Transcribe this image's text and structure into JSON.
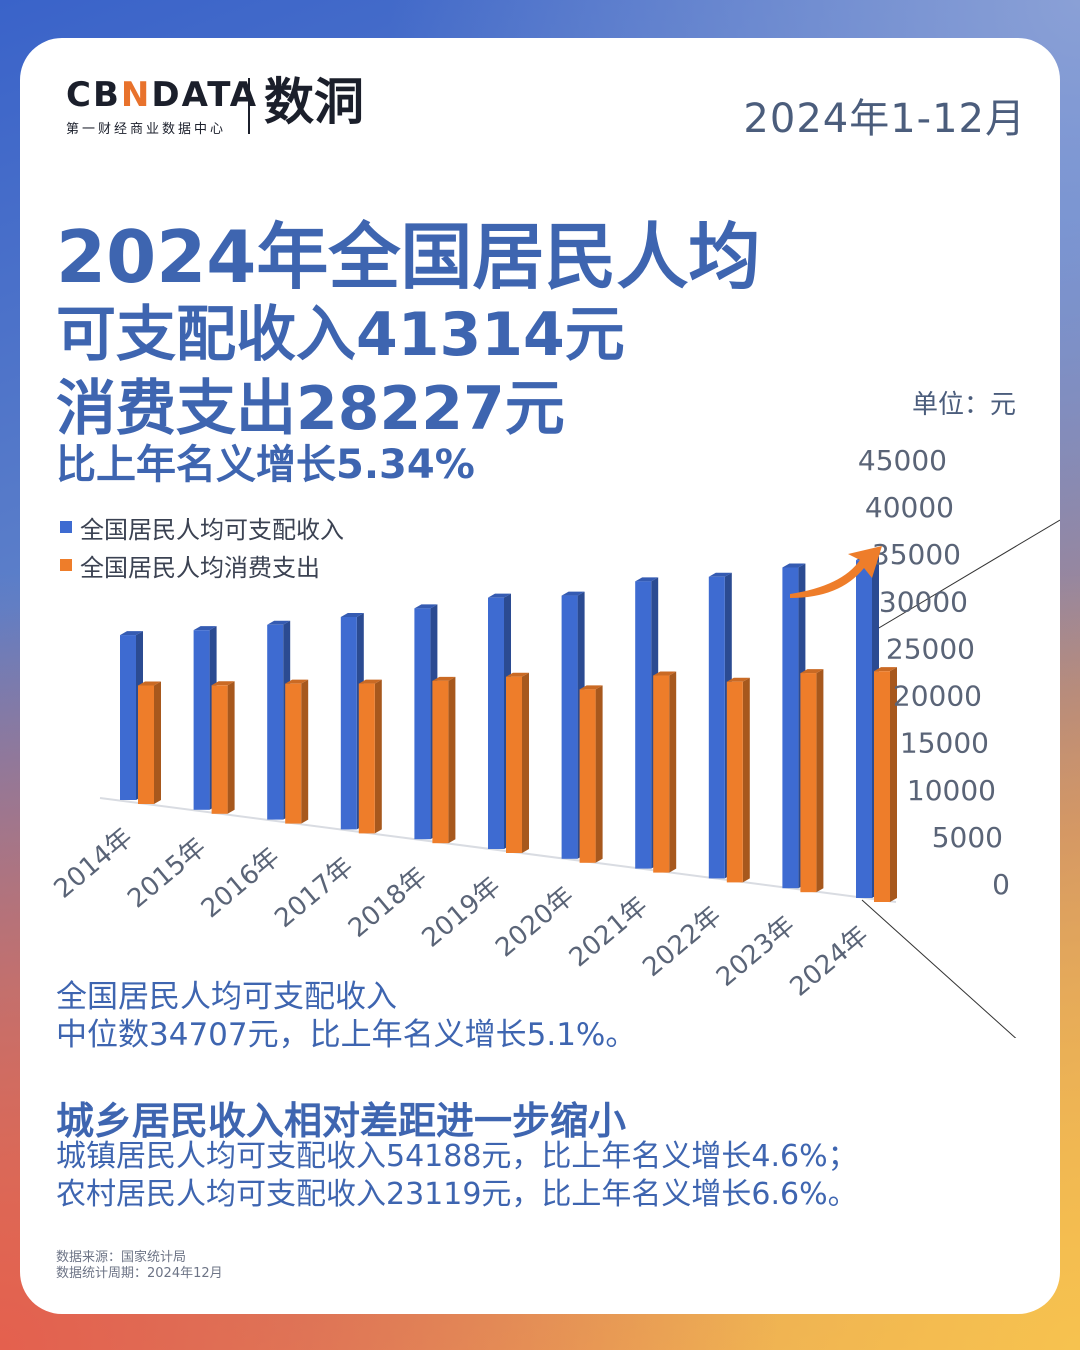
{
  "header": {
    "logo_text_a": "CB",
    "logo_text_x": "N",
    "logo_text_b": "DATA",
    "logo_subtitle": "第一财经商业数据中心",
    "logo_cn": "数洞",
    "period": "2024年1-12月"
  },
  "headline": {
    "line1": "2024年全国居民人均",
    "line2": "可支配收入41314元",
    "line3": "消费支出28227元",
    "line4": "比上年名义增长5.34%"
  },
  "chart_data": {
    "type": "bar",
    "unit_label": "单位：元",
    "categories": [
      "2014年",
      "2015年",
      "2016年",
      "2017年",
      "2018年",
      "2019年",
      "2020年",
      "2021年",
      "2022年",
      "2023年",
      "2024年"
    ],
    "series": [
      {
        "name": "全国居民人均可支配收入",
        "color": "#3e6bd1",
        "values": [
          20167,
          21966,
          23821,
          25974,
          28228,
          30733,
          32189,
          35128,
          36883,
          39218,
          41314
        ]
      },
      {
        "name": "全国居民人均消费支出",
        "color": "#ee7d2a",
        "values": [
          14491,
          15712,
          17111,
          18322,
          19853,
          21559,
          21210,
          24100,
          24538,
          26796,
          28227
        ]
      }
    ],
    "y_ticks": [
      0,
      5000,
      10000,
      15000,
      20000,
      25000,
      30000,
      35000,
      40000,
      45000
    ],
    "ylim": [
      0,
      45000
    ]
  },
  "notes": {
    "median_line1": "全国居民人均可支配收入",
    "median_line2": "中位数34707元，比上年名义增长5.1%。",
    "gap_title": "城乡居民收入相对差距进一步缩小",
    "urban": "城镇居民人均可支配收入54188元，比上年名义增长4.6%；",
    "rural": "农村居民人均可支配收入23119元，比上年名义增长6.6%。",
    "source": "数据来源：国家统计局",
    "stat_period": "数据统计周期：2024年12月"
  }
}
